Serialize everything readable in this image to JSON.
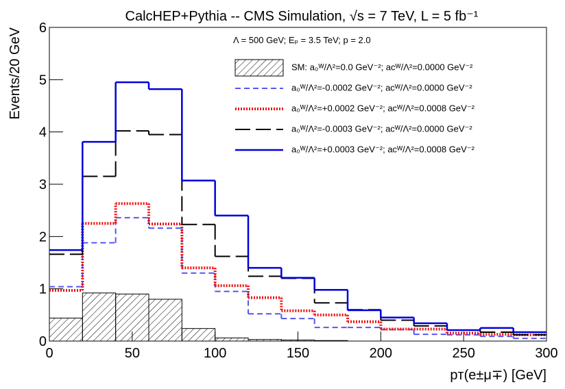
{
  "chart_data": {
    "type": "histogram",
    "title": "CalcHEP+Pythia -- CMS Simulation, √s = 7 TeV, L = 5 fb⁻¹",
    "annotation": "Λ = 500 GeV; Eₚ = 3.5 TeV; p = 2.0",
    "x_label": "pᴛ(e±μ∓) [GeV]",
    "y_label": "Events/20 GeV",
    "bins": [
      0,
      20,
      40,
      60,
      80,
      100,
      120,
      140,
      160,
      180,
      200,
      220,
      240,
      260,
      280,
      300
    ],
    "xlim": [
      0,
      300
    ],
    "xticks": [
      0,
      50,
      100,
      150,
      200,
      250,
      300
    ],
    "ylim": [
      0,
      6
    ],
    "yticks": [
      0,
      1,
      2,
      3,
      4,
      5,
      6
    ],
    "series": [
      {
        "name": "SM: a₀ᵂ/Λ²=0.0 GeV⁻²; aᴄᵂ/Λ²=0.0000 GeV⁻²",
        "color": "#000000",
        "style": "hatched",
        "values": [
          0.44,
          0.92,
          0.9,
          0.8,
          0.24,
          0.06,
          0.03,
          0.02,
          0.01,
          0,
          0,
          0,
          0,
          0,
          0
        ]
      },
      {
        "name": "a₀ᵂ/Λ²=-0.0002 GeV⁻²; aᴄᵂ/Λ²=0.0000 GeV⁻²",
        "color": "#5555ee",
        "style": "dashed",
        "values": [
          1.04,
          1.88,
          2.36,
          2.16,
          1.3,
          0.95,
          0.52,
          0.43,
          0.26,
          0.26,
          0.22,
          0.13,
          0.12,
          0.09,
          0.05
        ]
      },
      {
        "name": "a₀ᵂ/Λ²=+0.0002 GeV⁻²; aᴄᵂ/Λ²=0.0008 GeV⁻²",
        "color": "#ee1111",
        "style": "dotted",
        "values": [
          0.97,
          2.25,
          2.63,
          2.24,
          1.4,
          1.06,
          0.83,
          0.58,
          0.5,
          0.37,
          0.23,
          0.23,
          0.15,
          0.13,
          0.12
        ]
      },
      {
        "name": "a₀ᵂ/Λ²=-0.0003 GeV⁻²; aᴄᵂ/Λ²=0.0000 GeV⁻²",
        "color": "#000000",
        "style": "longdash",
        "values": [
          1.66,
          3.15,
          4.02,
          3.95,
          2.23,
          1.62,
          1.24,
          1.2,
          0.73,
          0.6,
          0.4,
          0.29,
          0.21,
          0.17,
          0.12
        ]
      },
      {
        "name": "a₀ᵂ/Λ²=+0.0003 GeV⁻²; aᴄᵂ/Λ²=0.0008 GeV⁻²",
        "color": "#0000dd",
        "style": "solid",
        "values": [
          1.74,
          3.81,
          4.95,
          4.82,
          3.07,
          2.4,
          1.4,
          1.21,
          0.98,
          0.59,
          0.45,
          0.34,
          0.21,
          0.25,
          0.17
        ]
      }
    ]
  }
}
